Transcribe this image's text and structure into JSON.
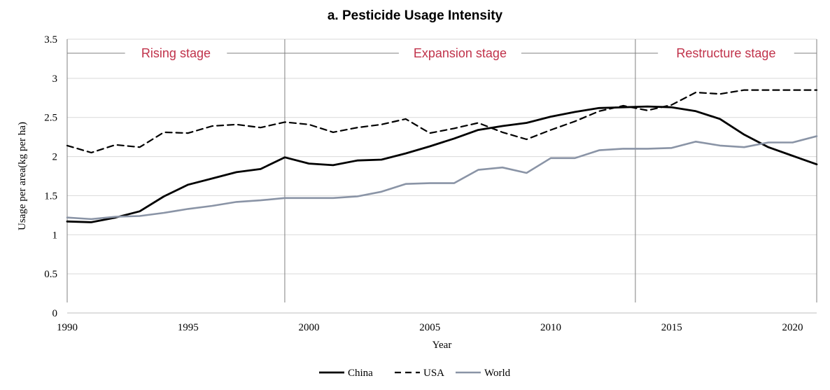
{
  "chart_data": {
    "type": "line",
    "title": "a. Pesticide Usage Intensity",
    "xlabel": "Year",
    "ylabel": "Usage per area(kg per ha)",
    "xlim": [
      1990,
      2021
    ],
    "ylim": [
      0,
      3.5
    ],
    "x_ticks": [
      "1990",
      "1995",
      "2000",
      "2005",
      "2010",
      "2015",
      "2020"
    ],
    "y_ticks": [
      "0",
      "0.5",
      "1",
      "1.5",
      "2",
      "2.5",
      "3",
      "3.5"
    ],
    "grid": "horizontal",
    "legend_position": "bottom",
    "x": [
      1990,
      1991,
      1992,
      1993,
      1994,
      1995,
      1996,
      1997,
      1998,
      1999,
      2000,
      2001,
      2002,
      2003,
      2004,
      2005,
      2006,
      2007,
      2008,
      2009,
      2010,
      2011,
      2012,
      2013,
      2014,
      2015,
      2016,
      2017,
      2018,
      2019,
      2020,
      2021
    ],
    "series": [
      {
        "name": "China",
        "style": "solid",
        "color": "#000000",
        "values": [
          1.17,
          1.16,
          1.22,
          1.3,
          1.49,
          1.64,
          1.72,
          1.8,
          1.84,
          1.99,
          1.91,
          1.89,
          1.95,
          1.96,
          2.04,
          2.13,
          2.23,
          2.34,
          2.39,
          2.43,
          2.51,
          2.57,
          2.62,
          2.63,
          2.64,
          2.63,
          2.58,
          2.48,
          2.28,
          2.12,
          2.01,
          1.9
        ]
      },
      {
        "name": "USA",
        "style": "dashed",
        "color": "#000000",
        "values": [
          2.14,
          2.05,
          2.15,
          2.12,
          2.31,
          2.3,
          2.39,
          2.41,
          2.37,
          2.44,
          2.41,
          2.31,
          2.37,
          2.41,
          2.48,
          2.3,
          2.36,
          2.43,
          2.31,
          2.22,
          2.34,
          2.45,
          2.58,
          2.65,
          2.59,
          2.66,
          2.82,
          2.8,
          2.85,
          2.85,
          2.85,
          2.85
        ]
      },
      {
        "name": "World",
        "style": "solid",
        "color": "#8a94a6",
        "values": [
          1.22,
          1.2,
          1.23,
          1.24,
          1.28,
          1.33,
          1.37,
          1.42,
          1.44,
          1.47,
          1.47,
          1.47,
          1.49,
          1.55,
          1.65,
          1.66,
          1.66,
          1.83,
          1.86,
          1.79,
          1.98,
          1.98,
          2.08,
          2.1,
          2.1,
          2.11,
          2.19,
          2.14,
          2.12,
          2.18,
          2.18,
          2.26
        ]
      }
    ],
    "stages": [
      {
        "label": "Rising stage",
        "start": 1990,
        "end": 1999
      },
      {
        "label": "Expansion stage",
        "start": 1999,
        "end": 2013.5
      },
      {
        "label": "Restructure stage",
        "start": 2013.5,
        "end": 2021
      }
    ]
  }
}
